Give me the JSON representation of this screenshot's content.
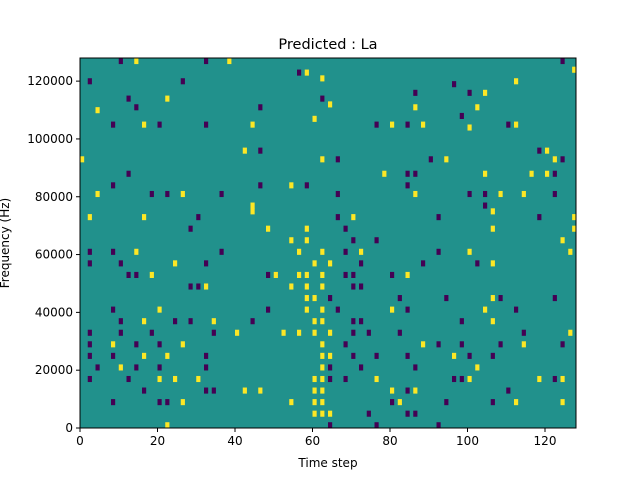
{
  "chart_data": {
    "type": "heatmap",
    "title": "Predicted : La",
    "xlabel": "Time step",
    "ylabel": "Frequency (Hz)",
    "xlim": [
      0,
      128
    ],
    "ylim": [
      0,
      128000
    ],
    "x_ticks": [
      0,
      20,
      40,
      60,
      80,
      100,
      120
    ],
    "y_ticks": [
      0,
      20000,
      40000,
      60000,
      80000,
      100000,
      120000
    ],
    "x_tick_labels": [
      "0",
      "20",
      "40",
      "60",
      "80",
      "100",
      "120"
    ],
    "y_tick_labels": [
      "0",
      "20000",
      "40000",
      "60000",
      "80000",
      "100000",
      "120000"
    ],
    "grid": false,
    "background_value": 0,
    "colormap": {
      "low": "#440154",
      "mid": "#21918c",
      "high": "#fde725"
    },
    "cells": [
      {
        "t": 10,
        "f": 126000,
        "v": -1
      },
      {
        "t": 14,
        "f": 126000,
        "v": 1
      },
      {
        "t": 32,
        "f": 126000,
        "v": -1
      },
      {
        "t": 38,
        "f": 126000,
        "v": 1
      },
      {
        "t": 56,
        "f": 122000,
        "v": -1
      },
      {
        "t": 58,
        "f": 122000,
        "v": 1
      },
      {
        "t": 62,
        "f": 120000,
        "v": 1
      },
      {
        "t": 124,
        "f": 126000,
        "v": -1
      },
      {
        "t": 127,
        "f": 123000,
        "v": 1
      },
      {
        "t": 2,
        "f": 119000,
        "v": -1
      },
      {
        "t": 26,
        "f": 119000,
        "v": -1
      },
      {
        "t": 112,
        "f": 119000,
        "v": 1
      },
      {
        "t": 96,
        "f": 118000,
        "v": -1
      },
      {
        "t": 86,
        "f": 115000,
        "v": -1
      },
      {
        "t": 100,
        "f": 115000,
        "v": -1
      },
      {
        "t": 104,
        "f": 115000,
        "v": 1
      },
      {
        "t": 12,
        "f": 113000,
        "v": -1
      },
      {
        "t": 22,
        "f": 113000,
        "v": 1
      },
      {
        "t": 62,
        "f": 113000,
        "v": -1
      },
      {
        "t": 64,
        "f": 111000,
        "v": 1
      },
      {
        "t": 4,
        "f": 109000,
        "v": 1
      },
      {
        "t": 14,
        "f": 110000,
        "v": -1
      },
      {
        "t": 46,
        "f": 110000,
        "v": -1
      },
      {
        "t": 86,
        "f": 110000,
        "v": 1
      },
      {
        "t": 102,
        "f": 110000,
        "v": 1
      },
      {
        "t": 60,
        "f": 106000,
        "v": 1
      },
      {
        "t": 98,
        "f": 107000,
        "v": -1
      },
      {
        "t": 100,
        "f": 103000,
        "v": 1
      },
      {
        "t": 8,
        "f": 104000,
        "v": -1
      },
      {
        "t": 16,
        "f": 104000,
        "v": 1
      },
      {
        "t": 20,
        "f": 104000,
        "v": -1
      },
      {
        "t": 32,
        "f": 104000,
        "v": -1
      },
      {
        "t": 44,
        "f": 104000,
        "v": 1
      },
      {
        "t": 76,
        "f": 104000,
        "v": -1
      },
      {
        "t": 80,
        "f": 104000,
        "v": 1
      },
      {
        "t": 84,
        "f": 104000,
        "v": -1
      },
      {
        "t": 88,
        "f": 104000,
        "v": 1
      },
      {
        "t": 110,
        "f": 104000,
        "v": -1
      },
      {
        "t": 112,
        "f": 104000,
        "v": 1
      },
      {
        "t": 42,
        "f": 95000,
        "v": 1
      },
      {
        "t": 46,
        "f": 95000,
        "v": -1
      },
      {
        "t": 118,
        "f": 95000,
        "v": -1
      },
      {
        "t": 120,
        "f": 95000,
        "v": 1
      },
      {
        "t": 0,
        "f": 92000,
        "v": 1
      },
      {
        "t": 62,
        "f": 92000,
        "v": 1
      },
      {
        "t": 66,
        "f": 92000,
        "v": -1
      },
      {
        "t": 90,
        "f": 92000,
        "v": -1
      },
      {
        "t": 94,
        "f": 92000,
        "v": 1
      },
      {
        "t": 122,
        "f": 92000,
        "v": 1
      },
      {
        "t": 124,
        "f": 92000,
        "v": -1
      },
      {
        "t": 12,
        "f": 87000,
        "v": -1
      },
      {
        "t": 78,
        "f": 87000,
        "v": 1
      },
      {
        "t": 84,
        "f": 87000,
        "v": -1
      },
      {
        "t": 86,
        "f": 87000,
        "v": -1
      },
      {
        "t": 104,
        "f": 87000,
        "v": 1
      },
      {
        "t": 116,
        "f": 87000,
        "v": 1
      },
      {
        "t": 120,
        "f": 87000,
        "v": 1
      },
      {
        "t": 122,
        "f": 87000,
        "v": -1
      },
      {
        "t": 8,
        "f": 83000,
        "v": -1
      },
      {
        "t": 46,
        "f": 83000,
        "v": -1
      },
      {
        "t": 54,
        "f": 83000,
        "v": 1
      },
      {
        "t": 58,
        "f": 83000,
        "v": -1
      },
      {
        "t": 84,
        "f": 83000,
        "v": -1
      },
      {
        "t": 4,
        "f": 80000,
        "v": 1
      },
      {
        "t": 18,
        "f": 80000,
        "v": -1
      },
      {
        "t": 22,
        "f": 80000,
        "v": -1
      },
      {
        "t": 26,
        "f": 80000,
        "v": 1
      },
      {
        "t": 36,
        "f": 80000,
        "v": -1
      },
      {
        "t": 66,
        "f": 80000,
        "v": -1
      },
      {
        "t": 86,
        "f": 80000,
        "v": 1
      },
      {
        "t": 100,
        "f": 80000,
        "v": -1
      },
      {
        "t": 104,
        "f": 80000,
        "v": -1
      },
      {
        "t": 108,
        "f": 80000,
        "v": 1
      },
      {
        "t": 114,
        "f": 80000,
        "v": 1
      },
      {
        "t": 122,
        "f": 80000,
        "v": -1
      },
      {
        "t": 44,
        "f": 74000,
        "v": 1
      },
      {
        "t": 44,
        "f": 76000,
        "v": 1
      },
      {
        "t": 104,
        "f": 76000,
        "v": -1
      },
      {
        "t": 106,
        "f": 74000,
        "v": 1
      },
      {
        "t": 2,
        "f": 72000,
        "v": 1
      },
      {
        "t": 16,
        "f": 72000,
        "v": 1
      },
      {
        "t": 30,
        "f": 72000,
        "v": -1
      },
      {
        "t": 66,
        "f": 72000,
        "v": -1
      },
      {
        "t": 70,
        "f": 72000,
        "v": 1
      },
      {
        "t": 92,
        "f": 72000,
        "v": -1
      },
      {
        "t": 118,
        "f": 72000,
        "v": -1
      },
      {
        "t": 128,
        "f": 72000,
        "v": 1
      },
      {
        "t": 28,
        "f": 68000,
        "v": -1
      },
      {
        "t": 48,
        "f": 68000,
        "v": 1
      },
      {
        "t": 58,
        "f": 68000,
        "v": 1
      },
      {
        "t": 68,
        "f": 68000,
        "v": -1
      },
      {
        "t": 106,
        "f": 68000,
        "v": 1
      },
      {
        "t": 128,
        "f": 68000,
        "v": 1
      },
      {
        "t": 54,
        "f": 64000,
        "v": 1
      },
      {
        "t": 58,
        "f": 64000,
        "v": 1
      },
      {
        "t": 70,
        "f": 64000,
        "v": -1
      },
      {
        "t": 76,
        "f": 64000,
        "v": -1
      },
      {
        "t": 124,
        "f": 64000,
        "v": 1
      },
      {
        "t": 2,
        "f": 60000,
        "v": -1
      },
      {
        "t": 8,
        "f": 60000,
        "v": -1
      },
      {
        "t": 14,
        "f": 60000,
        "v": 1
      },
      {
        "t": 36,
        "f": 60000,
        "v": -1
      },
      {
        "t": 56,
        "f": 60000,
        "v": 1
      },
      {
        "t": 62,
        "f": 60000,
        "v": 1
      },
      {
        "t": 68,
        "f": 60000,
        "v": -1
      },
      {
        "t": 72,
        "f": 60000,
        "v": 1
      },
      {
        "t": 92,
        "f": 60000,
        "v": -1
      },
      {
        "t": 100,
        "f": 60000,
        "v": 1
      },
      {
        "t": 126,
        "f": 60000,
        "v": 1
      },
      {
        "t": 2,
        "f": 56000,
        "v": -1
      },
      {
        "t": 10,
        "f": 56000,
        "v": -1
      },
      {
        "t": 24,
        "f": 56000,
        "v": 1
      },
      {
        "t": 32,
        "f": 56000,
        "v": -1
      },
      {
        "t": 60,
        "f": 56000,
        "v": 1
      },
      {
        "t": 64,
        "f": 56000,
        "v": 1
      },
      {
        "t": 72,
        "f": 56000,
        "v": -1
      },
      {
        "t": 88,
        "f": 56000,
        "v": -1
      },
      {
        "t": 102,
        "f": 56000,
        "v": -1
      },
      {
        "t": 106,
        "f": 56000,
        "v": 1
      },
      {
        "t": 12,
        "f": 52000,
        "v": -1
      },
      {
        "t": 14,
        "f": 52000,
        "v": -1
      },
      {
        "t": 18,
        "f": 52000,
        "v": 1
      },
      {
        "t": 48,
        "f": 52000,
        "v": -1
      },
      {
        "t": 50,
        "f": 52000,
        "v": 1
      },
      {
        "t": 56,
        "f": 52000,
        "v": 1
      },
      {
        "t": 58,
        "f": 52000,
        "v": 1
      },
      {
        "t": 62,
        "f": 52000,
        "v": 1
      },
      {
        "t": 68,
        "f": 52000,
        "v": -1
      },
      {
        "t": 70,
        "f": 52000,
        "v": -1
      },
      {
        "t": 80,
        "f": 52000,
        "v": -1
      },
      {
        "t": 84,
        "f": 52000,
        "v": 1
      },
      {
        "t": 28,
        "f": 48000,
        "v": -1
      },
      {
        "t": 30,
        "f": 48000,
        "v": -1
      },
      {
        "t": 32,
        "f": 48000,
        "v": 1
      },
      {
        "t": 54,
        "f": 48000,
        "v": 1
      },
      {
        "t": 58,
        "f": 48000,
        "v": 1
      },
      {
        "t": 62,
        "f": 48000,
        "v": 1
      },
      {
        "t": 70,
        "f": 48000,
        "v": -1
      },
      {
        "t": 72,
        "f": 48000,
        "v": -1
      },
      {
        "t": 58,
        "f": 44000,
        "v": 1
      },
      {
        "t": 60,
        "f": 44000,
        "v": 1
      },
      {
        "t": 64,
        "f": 44000,
        "v": -1
      },
      {
        "t": 82,
        "f": 44000,
        "v": -1
      },
      {
        "t": 94,
        "f": 44000,
        "v": -1
      },
      {
        "t": 106,
        "f": 44000,
        "v": 1
      },
      {
        "t": 108,
        "f": 44000,
        "v": -1
      },
      {
        "t": 122,
        "f": 44000,
        "v": -1
      },
      {
        "t": 8,
        "f": 40000,
        "v": -1
      },
      {
        "t": 20,
        "f": 40000,
        "v": 1
      },
      {
        "t": 48,
        "f": 40000,
        "v": -1
      },
      {
        "t": 58,
        "f": 40000,
        "v": 1
      },
      {
        "t": 62,
        "f": 40000,
        "v": 1
      },
      {
        "t": 66,
        "f": 40000,
        "v": -1
      },
      {
        "t": 80,
        "f": 40000,
        "v": 1
      },
      {
        "t": 84,
        "f": 40000,
        "v": -1
      },
      {
        "t": 104,
        "f": 40000,
        "v": 1
      },
      {
        "t": 112,
        "f": 40000,
        "v": -1
      },
      {
        "t": 10,
        "f": 36000,
        "v": -1
      },
      {
        "t": 16,
        "f": 36000,
        "v": 1
      },
      {
        "t": 24,
        "f": 36000,
        "v": -1
      },
      {
        "t": 28,
        "f": 36000,
        "v": -1
      },
      {
        "t": 34,
        "f": 36000,
        "v": 1
      },
      {
        "t": 44,
        "f": 36000,
        "v": -1
      },
      {
        "t": 60,
        "f": 36000,
        "v": 1
      },
      {
        "t": 62,
        "f": 36000,
        "v": 1
      },
      {
        "t": 70,
        "f": 36000,
        "v": -1
      },
      {
        "t": 72,
        "f": 36000,
        "v": -1
      },
      {
        "t": 98,
        "f": 36000,
        "v": -1
      },
      {
        "t": 106,
        "f": 36000,
        "v": 1
      },
      {
        "t": 2,
        "f": 32000,
        "v": -1
      },
      {
        "t": 10,
        "f": 32000,
        "v": -1
      },
      {
        "t": 18,
        "f": 32000,
        "v": -1
      },
      {
        "t": 34,
        "f": 32000,
        "v": -1
      },
      {
        "t": 40,
        "f": 32000,
        "v": 1
      },
      {
        "t": 52,
        "f": 32000,
        "v": 1
      },
      {
        "t": 56,
        "f": 32000,
        "v": 1
      },
      {
        "t": 60,
        "f": 32000,
        "v": 1
      },
      {
        "t": 64,
        "f": 32000,
        "v": 1
      },
      {
        "t": 70,
        "f": 32000,
        "v": -1
      },
      {
        "t": 74,
        "f": 32000,
        "v": -1
      },
      {
        "t": 82,
        "f": 32000,
        "v": -1
      },
      {
        "t": 114,
        "f": 32000,
        "v": -1
      },
      {
        "t": 126,
        "f": 32000,
        "v": 1
      },
      {
        "t": 2,
        "f": 28000,
        "v": -1
      },
      {
        "t": 8,
        "f": 28000,
        "v": 1
      },
      {
        "t": 14,
        "f": 28000,
        "v": -1
      },
      {
        "t": 20,
        "f": 28000,
        "v": -1
      },
      {
        "t": 26,
        "f": 28000,
        "v": 1
      },
      {
        "t": 62,
        "f": 28000,
        "v": 1
      },
      {
        "t": 68,
        "f": 28000,
        "v": -1
      },
      {
        "t": 88,
        "f": 28000,
        "v": 1
      },
      {
        "t": 92,
        "f": 28000,
        "v": -1
      },
      {
        "t": 98,
        "f": 28000,
        "v": -1
      },
      {
        "t": 108,
        "f": 28000,
        "v": -1
      },
      {
        "t": 114,
        "f": 28000,
        "v": 1
      },
      {
        "t": 124,
        "f": 28000,
        "v": -1
      },
      {
        "t": 2,
        "f": 24000,
        "v": -1
      },
      {
        "t": 8,
        "f": 24000,
        "v": -1
      },
      {
        "t": 16,
        "f": 24000,
        "v": 1
      },
      {
        "t": 22,
        "f": 24000,
        "v": 1
      },
      {
        "t": 32,
        "f": 24000,
        "v": -1
      },
      {
        "t": 62,
        "f": 24000,
        "v": 1
      },
      {
        "t": 64,
        "f": 24000,
        "v": 1
      },
      {
        "t": 70,
        "f": 24000,
        "v": -1
      },
      {
        "t": 76,
        "f": 24000,
        "v": -1
      },
      {
        "t": 84,
        "f": 24000,
        "v": -1
      },
      {
        "t": 96,
        "f": 24000,
        "v": 1
      },
      {
        "t": 100,
        "f": 24000,
        "v": -1
      },
      {
        "t": 106,
        "f": 24000,
        "v": -1
      },
      {
        "t": 4,
        "f": 20000,
        "v": -1
      },
      {
        "t": 10,
        "f": 20000,
        "v": 1
      },
      {
        "t": 14,
        "f": 20000,
        "v": -1
      },
      {
        "t": 20,
        "f": 20000,
        "v": -1
      },
      {
        "t": 32,
        "f": 20000,
        "v": -1
      },
      {
        "t": 62,
        "f": 20000,
        "v": 1
      },
      {
        "t": 64,
        "f": 20000,
        "v": -1
      },
      {
        "t": 72,
        "f": 20000,
        "v": -1
      },
      {
        "t": 86,
        "f": 20000,
        "v": -1
      },
      {
        "t": 102,
        "f": 20000,
        "v": 1
      },
      {
        "t": 2,
        "f": 16000,
        "v": -1
      },
      {
        "t": 12,
        "f": 16000,
        "v": -1
      },
      {
        "t": 20,
        "f": 16000,
        "v": 1
      },
      {
        "t": 24,
        "f": 16000,
        "v": 1
      },
      {
        "t": 30,
        "f": 16000,
        "v": 1
      },
      {
        "t": 60,
        "f": 16000,
        "v": 1
      },
      {
        "t": 62,
        "f": 16000,
        "v": 1
      },
      {
        "t": 64,
        "f": 16000,
        "v": -1
      },
      {
        "t": 68,
        "f": 16000,
        "v": -1
      },
      {
        "t": 76,
        "f": 16000,
        "v": 1
      },
      {
        "t": 96,
        "f": 16000,
        "v": -1
      },
      {
        "t": 98,
        "f": 16000,
        "v": -1
      },
      {
        "t": 100,
        "f": 16000,
        "v": 1
      },
      {
        "t": 118,
        "f": 16000,
        "v": 1
      },
      {
        "t": 122,
        "f": 16000,
        "v": -1
      },
      {
        "t": 124,
        "f": 16000,
        "v": 1
      },
      {
        "t": 16,
        "f": 12000,
        "v": -1
      },
      {
        "t": 32,
        "f": 12000,
        "v": -1
      },
      {
        "t": 34,
        "f": 12000,
        "v": -1
      },
      {
        "t": 42,
        "f": 12000,
        "v": 1
      },
      {
        "t": 46,
        "f": 12000,
        "v": 1
      },
      {
        "t": 60,
        "f": 12000,
        "v": 1
      },
      {
        "t": 62,
        "f": 12000,
        "v": 1
      },
      {
        "t": 80,
        "f": 12000,
        "v": 1
      },
      {
        "t": 84,
        "f": 12000,
        "v": -1
      },
      {
        "t": 86,
        "f": 12000,
        "v": 1
      },
      {
        "t": 110,
        "f": 12000,
        "v": -1
      },
      {
        "t": 8,
        "f": 8000,
        "v": -1
      },
      {
        "t": 20,
        "f": 8000,
        "v": -1
      },
      {
        "t": 22,
        "f": 8000,
        "v": -1
      },
      {
        "t": 26,
        "f": 8000,
        "v": 1
      },
      {
        "t": 54,
        "f": 8000,
        "v": 1
      },
      {
        "t": 60,
        "f": 8000,
        "v": 1
      },
      {
        "t": 62,
        "f": 8000,
        "v": 1
      },
      {
        "t": 80,
        "f": 8000,
        "v": -1
      },
      {
        "t": 82,
        "f": 8000,
        "v": 1
      },
      {
        "t": 94,
        "f": 8000,
        "v": -1
      },
      {
        "t": 106,
        "f": 8000,
        "v": -1
      },
      {
        "t": 112,
        "f": 8000,
        "v": 1
      },
      {
        "t": 124,
        "f": 8000,
        "v": 1
      },
      {
        "t": 60,
        "f": 4000,
        "v": 1
      },
      {
        "t": 62,
        "f": 4000,
        "v": 1
      },
      {
        "t": 64,
        "f": 4000,
        "v": 1
      },
      {
        "t": 74,
        "f": 4000,
        "v": -1
      },
      {
        "t": 84,
        "f": 4000,
        "v": -1
      },
      {
        "t": 86,
        "f": 4000,
        "v": -1
      },
      {
        "t": 22,
        "f": 0,
        "v": 1
      },
      {
        "t": 64,
        "f": 0,
        "v": -1
      },
      {
        "t": 76,
        "f": 0,
        "v": -1
      },
      {
        "t": 92,
        "f": 0,
        "v": -1
      }
    ]
  }
}
